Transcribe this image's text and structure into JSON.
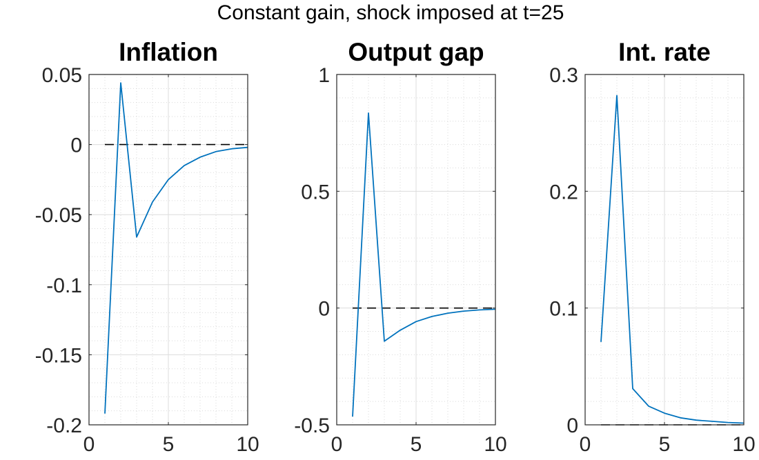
{
  "figure": {
    "suptitle": "Constant gain, shock imposed at t=25"
  },
  "chart_data": [
    {
      "type": "line",
      "title": "Inflation",
      "xlabel": "",
      "ylabel": "",
      "xlim": [
        0,
        10
      ],
      "ylim": [
        -0.2,
        0.05
      ],
      "xticks": [
        0,
        5,
        10
      ],
      "xtick_labels": [
        "0",
        "5",
        "10"
      ],
      "yticks": [
        -0.2,
        -0.15,
        -0.1,
        -0.05,
        0,
        0.05
      ],
      "ytick_labels": [
        "-0.2",
        "-0.15",
        "-0.1",
        "-0.05",
        "0",
        "0.05"
      ],
      "ygrid_minor_step": 0.01,
      "grid": true,
      "reference_line": {
        "y": 0,
        "x_range": [
          1,
          10
        ],
        "style": "dashed",
        "color": "#000000"
      },
      "series": [
        {
          "x": [
            1,
            2,
            3,
            4,
            5,
            6,
            7,
            8,
            9,
            10
          ],
          "y": [
            -0.192,
            0.044,
            -0.066,
            -0.041,
            -0.025,
            -0.015,
            -0.009,
            -0.005,
            -0.003,
            -0.002
          ],
          "color": "#0072BD"
        }
      ]
    },
    {
      "type": "line",
      "title": "Output gap",
      "xlabel": "",
      "ylabel": "",
      "xlim": [
        0,
        10
      ],
      "ylim": [
        -0.5,
        1
      ],
      "xticks": [
        0,
        5,
        10
      ],
      "xtick_labels": [
        "0",
        "5",
        "10"
      ],
      "yticks": [
        -0.5,
        0,
        0.5,
        1
      ],
      "ytick_labels": [
        "-0.5",
        "0",
        "0.5",
        "1"
      ],
      "ygrid_minor_step": 0.1,
      "grid": true,
      "reference_line": {
        "y": 0,
        "x_range": [
          1,
          10
        ],
        "style": "dashed",
        "color": "#000000"
      },
      "series": [
        {
          "x": [
            1,
            2,
            3,
            4,
            5,
            6,
            7,
            8,
            9,
            10
          ],
          "y": [
            -0.465,
            0.835,
            -0.142,
            -0.095,
            -0.058,
            -0.036,
            -0.022,
            -0.013,
            -0.008,
            -0.005
          ],
          "color": "#0072BD"
        }
      ]
    },
    {
      "type": "line",
      "title": "Int. rate",
      "xlabel": "",
      "ylabel": "",
      "xlim": [
        0,
        10
      ],
      "ylim": [
        0,
        0.3
      ],
      "xticks": [
        0,
        5,
        10
      ],
      "xtick_labels": [
        "0",
        "5",
        "10"
      ],
      "yticks": [
        0,
        0.1,
        0.2,
        0.3
      ],
      "ytick_labels": [
        "0",
        "0.1",
        "0.2",
        "0.3"
      ],
      "ygrid_minor_step": 0.02,
      "grid": true,
      "reference_line": {
        "y": 0,
        "x_range": [
          1,
          10
        ],
        "style": "dashed",
        "color": "#000000"
      },
      "series": [
        {
          "x": [
            1,
            2,
            3,
            4,
            5,
            6,
            7,
            8,
            9,
            10
          ],
          "y": [
            0.071,
            0.282,
            0.031,
            0.016,
            0.01,
            0.006,
            0.004,
            0.003,
            0.002,
            0.0015
          ],
          "color": "#0072BD"
        }
      ]
    }
  ]
}
